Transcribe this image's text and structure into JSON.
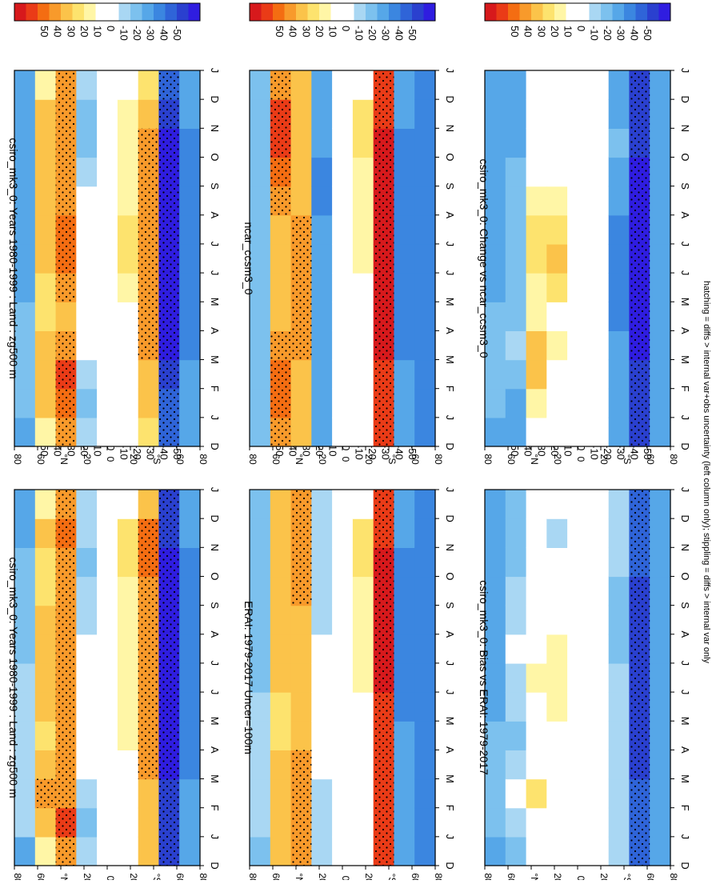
{
  "footer_text": "hatching = diffs > internal var+obs uncertainty (left column only); stippling = diffs > internal var only",
  "colorbar": {
    "ticks": [
      "50",
      "40",
      "30",
      "20",
      "10",
      "0",
      "-10",
      "-20",
      "-30",
      "-40",
      "-50"
    ],
    "colors": [
      "#d7191c",
      "#ea3b17",
      "#f46d12",
      "#f89a2b",
      "#fbc34a",
      "#fde36e",
      "#fff6a6",
      "#ffffff",
      "#ffffff",
      "#a9d7f3",
      "#7cc1ee",
      "#56a7e8",
      "#3b86e0",
      "#2f64d8",
      "#2a40cf",
      "#2f1de0"
    ]
  },
  "chart_data": [
    {
      "type": "heatmap",
      "title": "csiro_mk3_0: Years 1980-1999 : Land : zg500 m",
      "x_ticks": [
        "D",
        "J",
        "F",
        "M",
        "A",
        "M",
        "J",
        "J",
        "A",
        "S",
        "O",
        "N",
        "D",
        "J"
      ],
      "y_ticks": [
        "80",
        "60",
        "°N",
        "20",
        "0",
        "20",
        "°S",
        "60",
        "80"
      ],
      "grid": {
        "D": [
          -30,
          -10,
          -10,
          -15,
          -20,
          -15,
          -15,
          -15,
          -15,
          -20,
          -20,
          -20,
          -30
        ],
        "80N": [
          -20,
          -10,
          -10,
          -10,
          -10,
          -10,
          -10,
          -15,
          -15,
          -15,
          -15,
          -20,
          -20
        ],
        "60N": [
          10,
          25,
          30,
          20,
          15,
          20,
          25,
          25,
          20,
          15,
          15,
          20,
          10
        ],
        "40N": [
          30,
          40,
          30,
          30,
          30,
          30,
          30,
          30,
          30,
          30,
          30,
          35,
          30
        ],
        "20N": [
          -10,
          -15,
          -10,
          -5,
          0,
          0,
          -5,
          -5,
          -10,
          -10,
          -15,
          -10,
          -10
        ],
        "0": [
          0,
          0,
          0,
          0,
          0,
          0,
          0,
          0,
          0,
          0,
          0,
          0,
          0
        ],
        "20S": [
          5,
          5,
          5,
          5,
          10,
          10,
          10,
          10,
          10,
          10,
          15,
          15,
          5
        ],
        "40S": [
          20,
          20,
          25,
          30,
          30,
          30,
          30,
          30,
          30,
          30,
          35,
          35,
          20
        ],
        "60S": [
          -40,
          -40,
          -40,
          -45,
          -45,
          -45,
          -45,
          -45,
          -45,
          -45,
          -45,
          -40,
          -40
        ],
        "80S": [
          -20,
          -20,
          -20,
          -25,
          -25,
          -25,
          -25,
          -25,
          -25,
          -25,
          -25,
          -20,
          -20
        ]
      }
    },
    {
      "type": "heatmap",
      "title": "csiro_mk3_0: Years 1980-1999 : Land : zg500 m",
      "x_ticks": [
        "D",
        "J",
        "F",
        "M",
        "A",
        "M",
        "J",
        "J",
        "A",
        "S",
        "O",
        "N",
        "D",
        "J"
      ],
      "y_ticks": [
        "80",
        "60",
        "°N",
        "20",
        "0",
        "20",
        "°S",
        "60",
        "80"
      ],
      "grid": {
        "80N": [
          -20,
          -15,
          -15,
          -15,
          -15,
          -20,
          -20,
          -20,
          -20,
          -20,
          -20,
          -20,
          -20
        ],
        "60N": [
          10,
          20,
          25,
          20,
          15,
          15,
          20,
          25,
          25,
          20,
          20,
          20,
          10
        ],
        "40N": [
          30,
          35,
          40,
          30,
          25,
          30,
          35,
          35,
          30,
          30,
          30,
          30,
          30
        ],
        "20N": [
          -10,
          -15,
          -10,
          0,
          0,
          5,
          5,
          5,
          0,
          -10,
          -15,
          -15,
          -10
        ],
        "0": [
          0,
          0,
          0,
          0,
          0,
          0,
          0,
          0,
          0,
          0,
          0,
          0,
          0
        ],
        "20S": [
          5,
          5,
          5,
          5,
          5,
          10,
          15,
          15,
          10,
          10,
          10,
          10,
          5
        ],
        "40S": [
          15,
          20,
          25,
          30,
          30,
          30,
          30,
          30,
          30,
          30,
          30,
          25,
          15
        ],
        "60S": [
          -35,
          -35,
          -40,
          -45,
          -50,
          -50,
          -50,
          -50,
          -45,
          -45,
          -45,
          -40,
          -35
        ],
        "80S": [
          -20,
          -20,
          -20,
          -25,
          -25,
          -25,
          -25,
          -25,
          -25,
          -25,
          -25,
          -20,
          -20
        ]
      }
    },
    {
      "type": "heatmap",
      "title": "ERAI: 1979-2017 Uncer=100m",
      "x_ticks": [
        "D",
        "J",
        "F",
        "M",
        "A",
        "M",
        "J",
        "J",
        "A",
        "S",
        "O",
        "N",
        "D",
        "J"
      ],
      "y_ticks": [
        "80",
        "60",
        "°N",
        "20",
        "0",
        "20",
        "°S",
        "60",
        "80"
      ],
      "grid": {
        "80N": [
          -15,
          -10,
          -10,
          -10,
          -10,
          -10,
          -15,
          -15,
          -15,
          -15,
          -15,
          -15,
          -15
        ],
        "60N": [
          20,
          25,
          25,
          20,
          15,
          15,
          20,
          20,
          20,
          20,
          25,
          25,
          20
        ],
        "40N": [
          30,
          30,
          30,
          30,
          25,
          20,
          20,
          20,
          25,
          30,
          30,
          30,
          30
        ],
        "20N": [
          -10,
          -10,
          -10,
          -5,
          0,
          0,
          0,
          -5,
          -10,
          -10,
          -10,
          -10,
          -10
        ],
        "0": [
          0,
          0,
          0,
          0,
          0,
          0,
          0,
          0,
          0,
          0,
          0,
          0,
          0
        ],
        "20S": [
          5,
          5,
          5,
          5,
          5,
          5,
          10,
          10,
          10,
          10,
          15,
          15,
          5
        ],
        "40S": [
          40,
          40,
          40,
          40,
          40,
          40,
          45,
          45,
          45,
          45,
          45,
          40,
          40
        ],
        "60S": [
          -20,
          -20,
          -20,
          -20,
          -20,
          -25,
          -25,
          -25,
          -25,
          -25,
          -25,
          -20,
          -20
        ],
        "80S": [
          -25,
          -25,
          -25,
          -25,
          -25,
          -25,
          -25,
          -25,
          -25,
          -25,
          -25,
          -25,
          -25
        ]
      }
    },
    {
      "type": "heatmap",
      "title": "ncar_ccsm3_0",
      "x_ticks": [
        "D",
        "J",
        "F",
        "M",
        "A",
        "M",
        "J",
        "J",
        "A",
        "S",
        "O",
        "N",
        "D",
        "J"
      ],
      "y_ticks": [
        "80",
        "60",
        "°N",
        "20",
        "0",
        "20",
        "°S",
        "60",
        "80"
      ],
      "grid": {
        "80N": [
          -15,
          -15,
          -15,
          -15,
          -15,
          -15,
          -15,
          -15,
          -15,
          -15,
          -15,
          -15,
          -15
        ],
        "60N": [
          30,
          35,
          35,
          30,
          25,
          20,
          20,
          25,
          30,
          35,
          40,
          40,
          30
        ],
        "40N": [
          25,
          25,
          25,
          30,
          30,
          30,
          30,
          30,
          25,
          25,
          25,
          25,
          25
        ],
        "20N": [
          -20,
          -20,
          -20,
          -20,
          -20,
          -20,
          -20,
          -20,
          -25,
          -25,
          -20,
          -20,
          -20
        ],
        "0": [
          0,
          0,
          0,
          0,
          0,
          0,
          0,
          0,
          0,
          0,
          0,
          0,
          0
        ],
        "20S": [
          5,
          5,
          5,
          5,
          5,
          5,
          10,
          10,
          10,
          10,
          15,
          15,
          5
        ],
        "40S": [
          40,
          40,
          40,
          45,
          45,
          45,
          45,
          45,
          45,
          45,
          45,
          40,
          40
        ],
        "60S": [
          -20,
          -20,
          -20,
          -25,
          -25,
          -25,
          -25,
          -25,
          -25,
          -25,
          -25,
          -20,
          -20
        ],
        "80S": [
          -25,
          -25,
          -25,
          -25,
          -25,
          -25,
          -25,
          -25,
          -25,
          -25,
          -25,
          -25,
          -25
        ]
      }
    },
    {
      "type": "heatmap",
      "title": "csiro_mk3_0: Bias vs ERAI: 1979-2017",
      "x_ticks": [
        "D",
        "J",
        "F",
        "M",
        "A",
        "M",
        "J",
        "J",
        "A",
        "S",
        "O",
        "N",
        "D",
        "J"
      ],
      "y_ticks": [
        "80",
        "60",
        "°N",
        "20",
        "0",
        "20",
        "°S",
        "60",
        "80"
      ],
      "grid": {
        "80N": [
          -20,
          -15,
          -15,
          -15,
          -15,
          -20,
          -20,
          -20,
          -20,
          -20,
          -20,
          -20,
          -20
        ],
        "60N": [
          -15,
          -10,
          -5,
          -10,
          -15,
          -10,
          -10,
          -5,
          -10,
          -10,
          -15,
          -15,
          -15
        ],
        "40N": [
          0,
          5,
          15,
          5,
          0,
          5,
          10,
          5,
          0,
          0,
          0,
          5,
          0
        ],
        "20N": [
          0,
          -5,
          0,
          5,
          0,
          10,
          10,
          10,
          0,
          0,
          -5,
          -10,
          0
        ],
        "0": [
          0,
          0,
          0,
          0,
          0,
          0,
          0,
          0,
          0,
          0,
          0,
          0,
          0
        ],
        "20S": [
          0,
          0,
          0,
          0,
          0,
          5,
          5,
          5,
          0,
          0,
          5,
          5,
          0
        ],
        "40S": [
          -10,
          -10,
          -10,
          -10,
          -10,
          -10,
          -10,
          -15,
          -15,
          -15,
          -10,
          -10,
          -10
        ],
        "60S": [
          -35,
          -35,
          -35,
          -40,
          -40,
          -40,
          -40,
          -40,
          -40,
          -40,
          -35,
          -35,
          -35
        ],
        "80S": [
          -20,
          -20,
          -20,
          -20,
          -20,
          -20,
          -20,
          -20,
          -20,
          -20,
          -20,
          -20,
          -20
        ]
      }
    },
    {
      "type": "heatmap",
      "title": "csiro_mk3_0: Change vs ncar_ccsm3_0",
      "x_ticks": [
        "D",
        "J",
        "F",
        "M",
        "A",
        "M",
        "J",
        "J",
        "A",
        "S",
        "O",
        "N",
        "D",
        "J"
      ],
      "y_ticks": [
        "80",
        "60",
        "°N",
        "20",
        "0",
        "20",
        "°S",
        "60",
        "80"
      ],
      "grid": {
        "80N": [
          -20,
          -15,
          -15,
          -15,
          -15,
          -20,
          -20,
          -20,
          -20,
          -20,
          -20,
          -20,
          -20
        ],
        "60N": [
          -20,
          -20,
          -15,
          -10,
          -15,
          -15,
          -15,
          -15,
          -15,
          -15,
          -20,
          -20,
          -20
        ],
        "40N": [
          5,
          10,
          25,
          20,
          10,
          10,
          15,
          15,
          10,
          5,
          5,
          5,
          5
        ],
        "20N": [
          0,
          0,
          5,
          10,
          5,
          15,
          20,
          15,
          10,
          5,
          0,
          0,
          0
        ],
        "0": [
          0,
          0,
          0,
          0,
          0,
          0,
          0,
          0,
          0,
          0,
          0,
          0,
          0
        ],
        "20S": [
          5,
          5,
          0,
          0,
          0,
          0,
          0,
          0,
          0,
          0,
          5,
          5,
          5
        ],
        "40S": [
          -20,
          -20,
          -20,
          -20,
          -25,
          -25,
          -25,
          -25,
          -20,
          -20,
          -15,
          -20,
          -20
        ],
        "60S": [
          -40,
          -40,
          -40,
          -45,
          -45,
          -45,
          -45,
          -45,
          -45,
          -45,
          -40,
          -40,
          -40
        ],
        "80S": [
          -20,
          -20,
          -20,
          -20,
          -20,
          -20,
          -20,
          -20,
          -20,
          -20,
          -20,
          -20,
          -20
        ]
      }
    }
  ]
}
